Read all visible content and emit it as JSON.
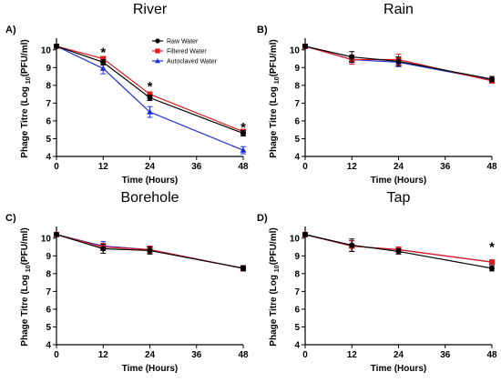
{
  "chart_data": [
    {
      "type": "line",
      "panel_label": "A)",
      "title": "River",
      "xlabel": "Time (Hours)",
      "ylabel_prefix": "Phage Titre (Log ",
      "ylabel_sub": "10",
      "ylabel_suffix": "(PFU/ml)",
      "x": [
        0,
        12,
        24,
        48
      ],
      "xticks": [
        0,
        12,
        24,
        36,
        48
      ],
      "yticks": [
        4,
        5,
        6,
        7,
        8,
        9,
        10
      ],
      "xlim": [
        0,
        48
      ],
      "ylim": [
        4,
        10.5
      ],
      "legend_position": "top-right",
      "series": [
        {
          "name": "Raw Water",
          "color": "#000000",
          "marker": "circle",
          "values": [
            10.2,
            9.3,
            7.3,
            5.3
          ],
          "errors": [
            0.1,
            0.15,
            0.15,
            0.15
          ]
        },
        {
          "name": "Filtered Water",
          "color": "#e31a1c",
          "marker": "square",
          "values": [
            10.2,
            9.5,
            7.5,
            5.4
          ],
          "errors": [
            0.1,
            0.12,
            0.12,
            0.12
          ]
        },
        {
          "name": "Autoclaved Water",
          "color": "#1f2fd6",
          "marker": "triangle",
          "values": [
            10.2,
            8.95,
            6.5,
            4.35
          ],
          "errors": [
            0.1,
            0.3,
            0.3,
            0.2
          ]
        }
      ],
      "annotations": [
        {
          "x": 12,
          "y": 9.9,
          "text": "*"
        },
        {
          "x": 24,
          "y": 8.0,
          "text": "*"
        },
        {
          "x": 48,
          "y": 5.7,
          "text": "*"
        }
      ]
    },
    {
      "type": "line",
      "panel_label": "B)",
      "title": "Rain",
      "xlabel": "Time (Hours)",
      "ylabel_prefix": "Phage Titre (Log ",
      "ylabel_sub": "10",
      "ylabel_suffix": "(PFU/ml)",
      "x": [
        0,
        12,
        24,
        48
      ],
      "xticks": [
        0,
        12,
        24,
        36,
        48
      ],
      "yticks": [
        4,
        5,
        6,
        7,
        8,
        9,
        10
      ],
      "xlim": [
        0,
        48
      ],
      "ylim": [
        4,
        10.5
      ],
      "series": [
        {
          "color": "#000000",
          "marker": "circle",
          "values": [
            10.2,
            9.6,
            9.35,
            8.35
          ],
          "errors": [
            0.1,
            0.3,
            0.25,
            0.15
          ]
        },
        {
          "color": "#e31a1c",
          "marker": "square",
          "values": [
            10.2,
            9.45,
            9.45,
            8.25
          ],
          "errors": [
            0.1,
            0.25,
            0.3,
            0.1
          ]
        },
        {
          "color": "#1f2fd6",
          "marker": "triangle",
          "values": [
            10.2,
            9.45,
            9.3,
            8.3
          ],
          "errors": [
            0.1,
            0.25,
            0.25,
            0.1
          ]
        }
      ],
      "annotations": []
    },
    {
      "type": "line",
      "panel_label": "C)",
      "title": "Borehole",
      "xlabel": "Time (Hours)",
      "ylabel_prefix": "Phage Titre (Log ",
      "ylabel_sub": "10",
      "ylabel_suffix": "(PFU/ml)",
      "x": [
        0,
        12,
        24,
        48
      ],
      "xticks": [
        0,
        12,
        24,
        36,
        48
      ],
      "yticks": [
        4,
        5,
        6,
        7,
        8,
        9,
        10
      ],
      "xlim": [
        0,
        48
      ],
      "ylim": [
        4,
        10.5
      ],
      "series": [
        {
          "color": "#000000",
          "marker": "circle",
          "values": [
            10.2,
            9.4,
            9.3,
            8.3
          ],
          "errors": [
            0.1,
            0.25,
            0.2,
            0.15
          ]
        },
        {
          "color": "#e31a1c",
          "marker": "square",
          "values": [
            10.2,
            9.5,
            9.35,
            8.3
          ],
          "errors": [
            0.1,
            0.2,
            0.2,
            0.1
          ]
        },
        {
          "color": "#1f2fd6",
          "marker": "triangle",
          "values": [
            10.2,
            9.55,
            9.35,
            8.3
          ],
          "errors": [
            0.1,
            0.25,
            0.2,
            0.1
          ]
        }
      ],
      "annotations": []
    },
    {
      "type": "line",
      "panel_label": "D)",
      "title": "Tap",
      "xlabel": "Time (Hours)",
      "ylabel_prefix": "Phage Titre (Log ",
      "ylabel_sub": "10",
      "ylabel_suffix": "(PFU/ml)",
      "x": [
        0,
        12,
        24,
        48
      ],
      "xticks": [
        0,
        12,
        24,
        36,
        48
      ],
      "yticks": [
        4,
        5,
        6,
        7,
        8,
        9,
        10
      ],
      "xlim": [
        0,
        48
      ],
      "ylim": [
        4,
        10.5
      ],
      "series": [
        {
          "color": "#000000",
          "marker": "circle",
          "values": [
            10.2,
            9.6,
            9.25,
            8.3
          ],
          "errors": [
            0.1,
            0.35,
            0.15,
            0.15
          ]
        },
        {
          "color": "#e31a1c",
          "marker": "square",
          "values": [
            10.2,
            9.55,
            9.35,
            8.65
          ],
          "errors": [
            0.1,
            0.3,
            0.15,
            0.1
          ]
        },
        {
          "color": "#1f2fd6",
          "marker": "triangle",
          "values": [
            10.2,
            9.55,
            9.35,
            8.65
          ],
          "errors": [
            0.1,
            0.3,
            0.15,
            0.1
          ]
        }
      ],
      "annotations": [
        {
          "x": 48,
          "y": 9.55,
          "text": "*"
        }
      ]
    }
  ]
}
